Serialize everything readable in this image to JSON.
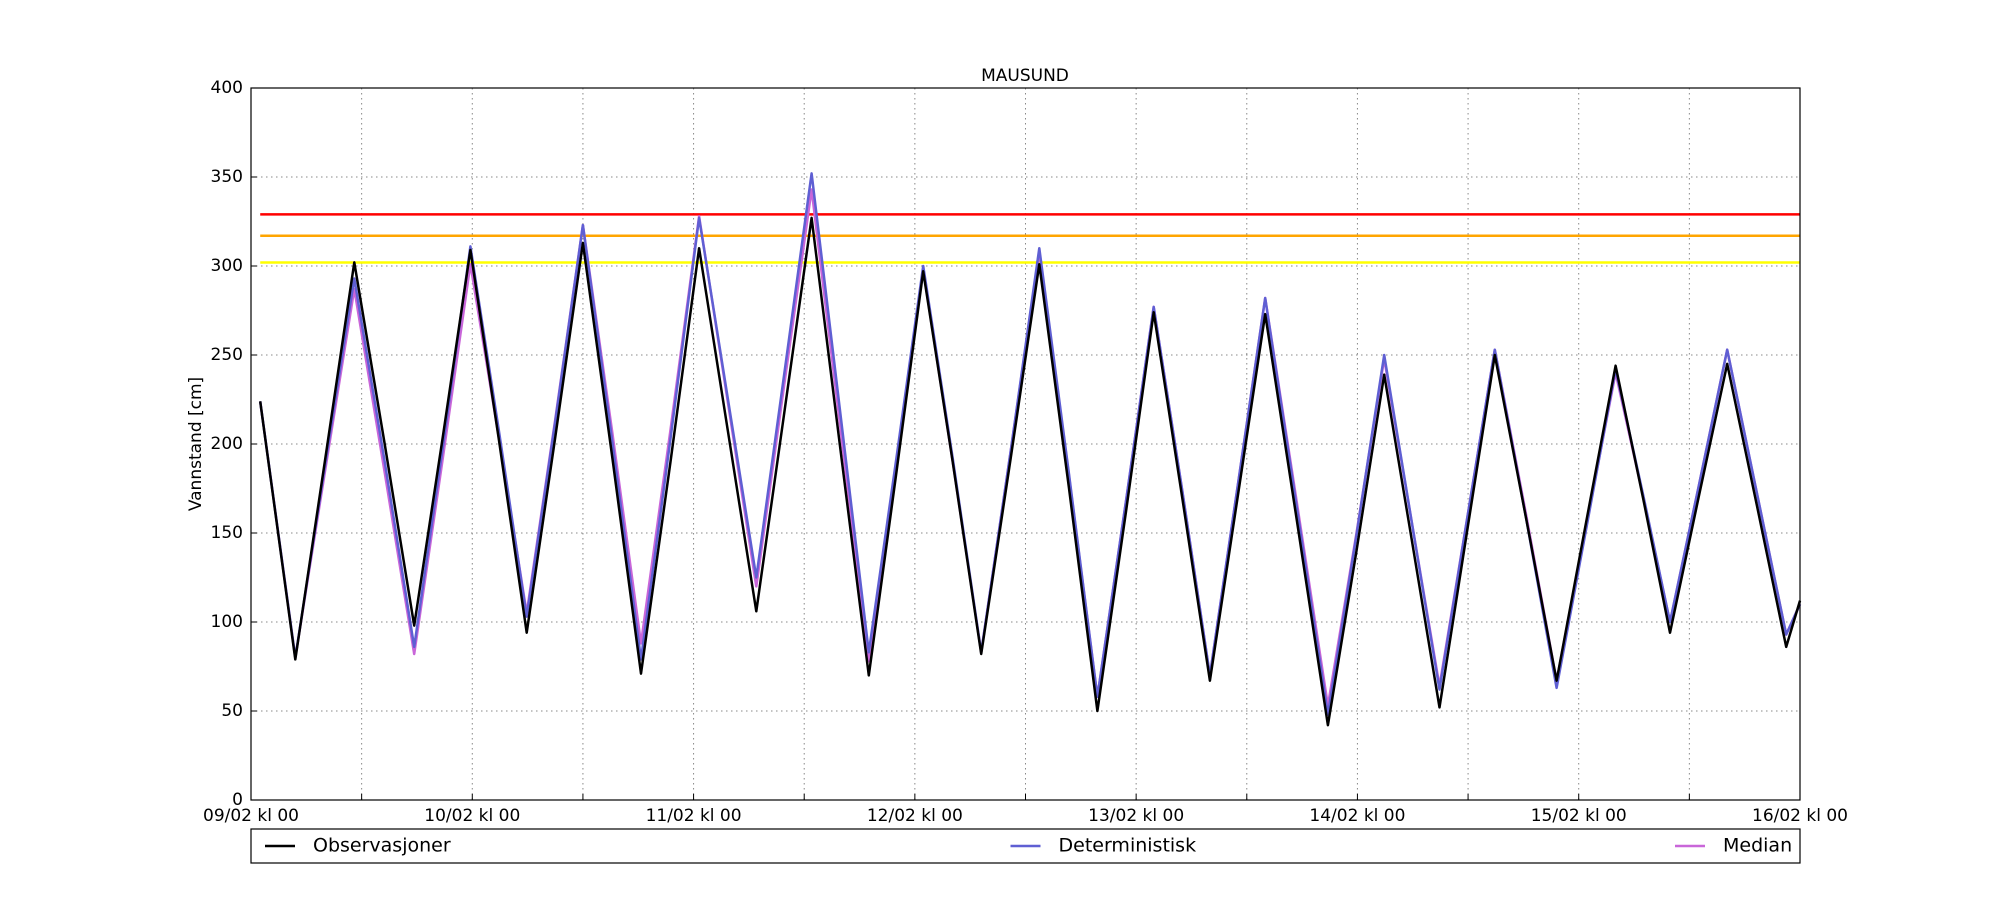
{
  "chart_data": {
    "type": "line",
    "title": "MAUSUND",
    "ylabel": "Vannstand [cm]",
    "x": [
      1,
      4.8,
      8,
      11.2,
      14.5,
      17.7,
      20.8,
      23.8,
      26.9,
      29.9,
      33,
      36,
      39.2,
      42.3,
      45.5,
      48.6,
      51.7,
      54.8,
      57.8,
      60.8,
      63.9,
      67,
      70,
      72.9,
      76.1,
      79.2,
      82.4,
      85.5,
      88.7,
      91.8,
      94.9,
      97.9,
      101,
      104,
      107,
      110,
      113.4,
      116.8,
      119.9,
      122.9,
      125.9,
      128.9,
      131.9,
      134.9,
      138.3,
      141.6,
      144.8,
      148,
      151,
      153.9,
      157,
      160.1,
      163.3,
      166.5,
      168
    ],
    "series": [
      {
        "name": "Observasjoner",
        "color": "#000000",
        "values": [
          224,
          79,
          190,
          302,
          200,
          98,
          204,
          309,
          202,
          94,
          204,
          313,
          192,
          71,
          190,
          310,
          208,
          106,
          216,
          327,
          198,
          70,
          184,
          297,
          190,
          82,
          192,
          301,
          176,
          50,
          162,
          274,
          170,
          67,
          170,
          273,
          158,
          42,
          140,
          239,
          146,
          52,
          151,
          250,
          158,
          67,
          156,
          244,
          169,
          94,
          170,
          245,
          166,
          86,
          112
        ]
      },
      {
        "name": "Deterministisk",
        "color": "#5f5fd3",
        "values": [
          224,
          80,
          187,
          293,
          190,
          86,
          198,
          311,
          207,
          103,
          213,
          323,
          201,
          79,
          203,
          327,
          226,
          125,
          238,
          352,
          218,
          83,
          192,
          300,
          192,
          83,
          196,
          310,
          184,
          58,
          168,
          277,
          174,
          70,
          176,
          282,
          165,
          48,
          149,
          250,
          156,
          62,
          158,
          253,
          158,
          63,
          152,
          242,
          171,
          100,
          176,
          253,
          173,
          93,
          110
        ]
      },
      {
        "name": "Median",
        "color": "#c966d9",
        "values": [
          224,
          80,
          184,
          287,
          184,
          82,
          192,
          301,
          203,
          105,
          214,
          323,
          206,
          88,
          208,
          328,
          224,
          120,
          232,
          343,
          210,
          78,
          188,
          298,
          190,
          83,
          196,
          308,
          183,
          58,
          168,
          277,
          174,
          70,
          176,
          282,
          168,
          53,
          150,
          248,
          156,
          64,
          158,
          253,
          160,
          67,
          154,
          240,
          170,
          100,
          176,
          253,
          173,
          93,
          110
        ]
      }
    ],
    "reference_lines": [
      {
        "value": 329,
        "color": "#ff0000"
      },
      {
        "value": 317,
        "color": "#ffa500"
      },
      {
        "value": 302,
        "color": "#ffff00"
      }
    ],
    "xlim": [
      0,
      168
    ],
    "xticks": [
      {
        "value": 0,
        "label": "09/02 kl 00"
      },
      {
        "value": 12,
        "label": null
      },
      {
        "value": 24,
        "label": "10/02 kl 00"
      },
      {
        "value": 36,
        "label": null
      },
      {
        "value": 48,
        "label": "11/02 kl 00"
      },
      {
        "value": 60,
        "label": null
      },
      {
        "value": 72,
        "label": "12/02 kl 00"
      },
      {
        "value": 84,
        "label": null
      },
      {
        "value": 96,
        "label": "13/02 kl 00"
      },
      {
        "value": 108,
        "label": null
      },
      {
        "value": 120,
        "label": "14/02 kl 00"
      },
      {
        "value": 132,
        "label": null
      },
      {
        "value": 144,
        "label": "15/02 kl 00"
      },
      {
        "value": 156,
        "label": null
      },
      {
        "value": 168,
        "label": "16/02 kl 00"
      }
    ],
    "ylim": [
      0,
      400
    ],
    "yticks": [
      0,
      50,
      100,
      150,
      200,
      250,
      300,
      350,
      400
    ],
    "grid": true,
    "legend": "bottom"
  }
}
